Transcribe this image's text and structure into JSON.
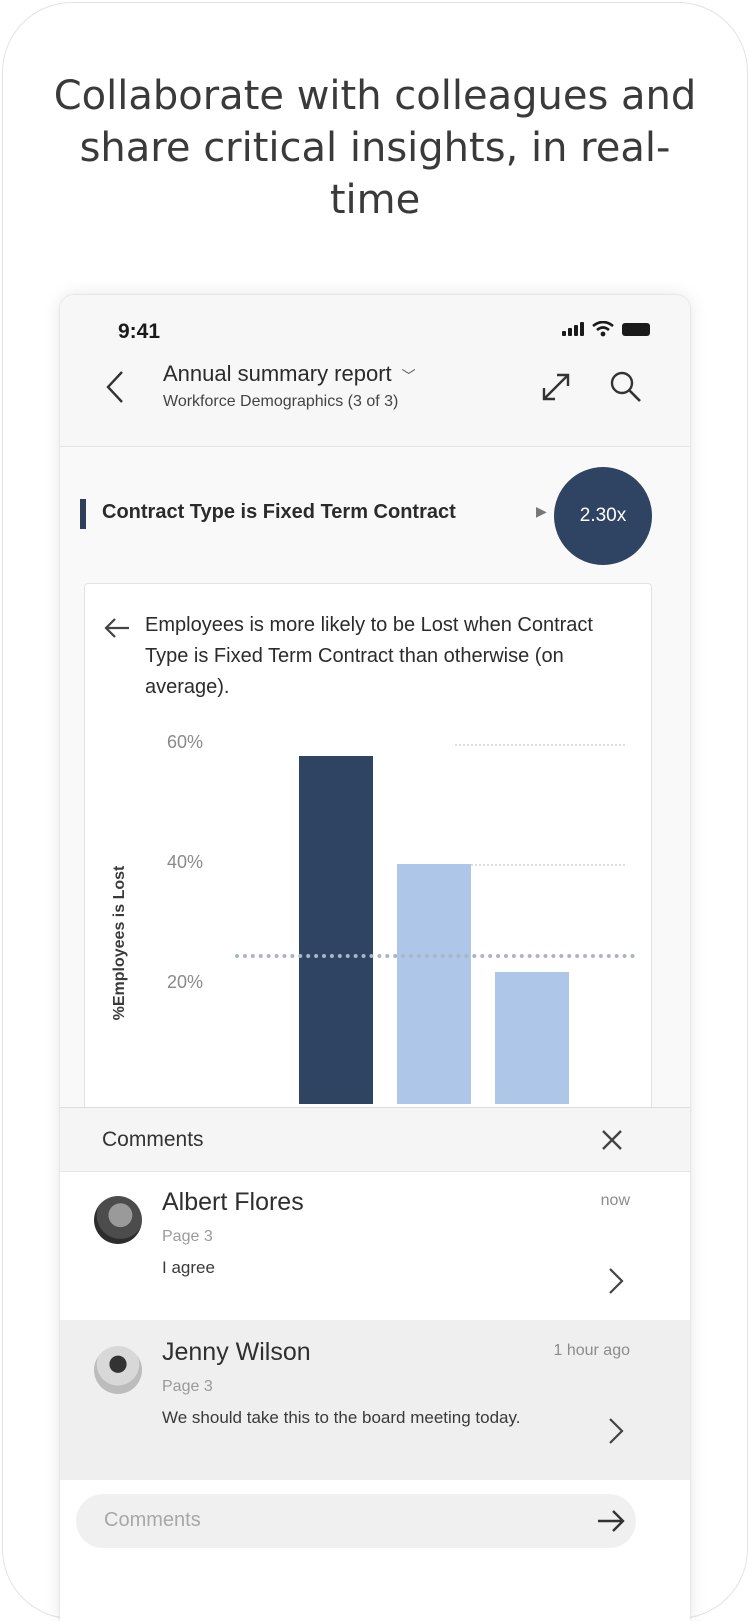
{
  "headline": "Collaborate with colleagues and share critical insights, in real-time",
  "status_bar": {
    "time": "9:41"
  },
  "header": {
    "report_title": "Annual summary report",
    "report_subtitle": "Workforce Demographics (3 of 3)"
  },
  "insight": {
    "title": "Contract Type is Fixed Term Contract",
    "speed_badge": "2.30x",
    "description": "Employees is more likely to be Lost when Contract Type is Fixed Term Contract than otherwise (on average)."
  },
  "colors": {
    "primary_bar": "#2f4363",
    "secondary_bar": "#aec7e8",
    "average_line": "#aab5c6"
  },
  "chart_data": {
    "type": "bar",
    "ylabel": "%Employees is Lost",
    "yticks": [
      "60%",
      "40%",
      "20%"
    ],
    "ylim": [
      0,
      60
    ],
    "values": [
      58,
      40,
      22
    ],
    "average": 25,
    "grid": true
  },
  "comments": {
    "title": "Comments",
    "items": [
      {
        "author": "Albert Flores",
        "time": "now",
        "page": "Page 3",
        "text": "I agree"
      },
      {
        "author": "Jenny Wilson",
        "time": "1 hour ago",
        "page": "Page 3",
        "text": "We should take this to the board meeting today."
      }
    ],
    "input_placeholder": "Comments"
  },
  "icons": {
    "back": "chevron-left-icon",
    "dropdown": "chevron-down-icon",
    "expand": "expand-icon",
    "search": "search-icon",
    "play": "play-icon",
    "close": "close-icon",
    "send": "arrow-right-icon"
  }
}
